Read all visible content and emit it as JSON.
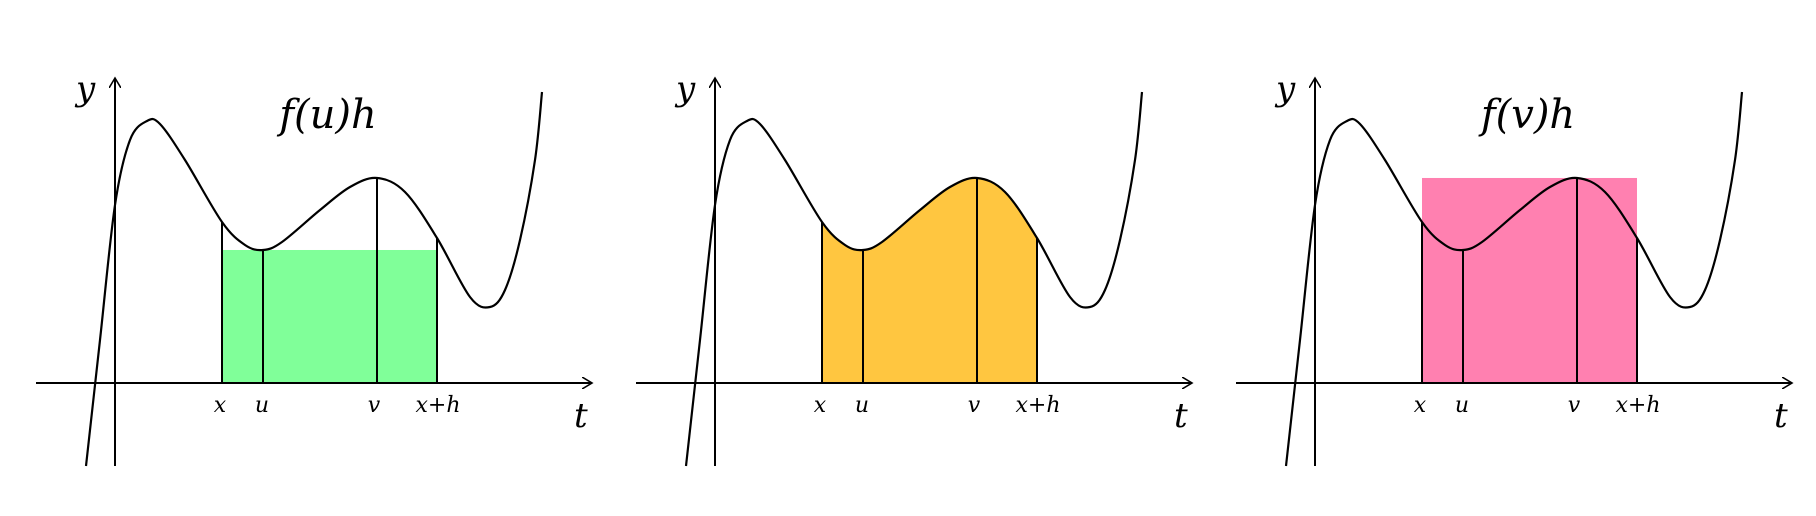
{
  "panels": [
    {
      "id": "left",
      "y_label": "y",
      "t_label": "t",
      "region_label": "f(u)h",
      "region": "rect-u",
      "fill_color": "#80ff99",
      "ticks": {
        "x": "x",
        "u": "u",
        "v": "v",
        "xh": "x+h"
      }
    },
    {
      "id": "middle",
      "y_label": "y",
      "t_label": "t",
      "region_label": "",
      "region": "area",
      "fill_color": "#ffc640",
      "ticks": {
        "x": "x",
        "u": "u",
        "v": "v",
        "xh": "x+h"
      }
    },
    {
      "id": "right",
      "y_label": "y",
      "t_label": "t",
      "region_label": "f(v)h",
      "region": "rect-v",
      "fill_color": "#ff80b0",
      "ticks": {
        "x": "x",
        "u": "u",
        "v": "v",
        "xh": "x+h"
      }
    }
  ]
}
